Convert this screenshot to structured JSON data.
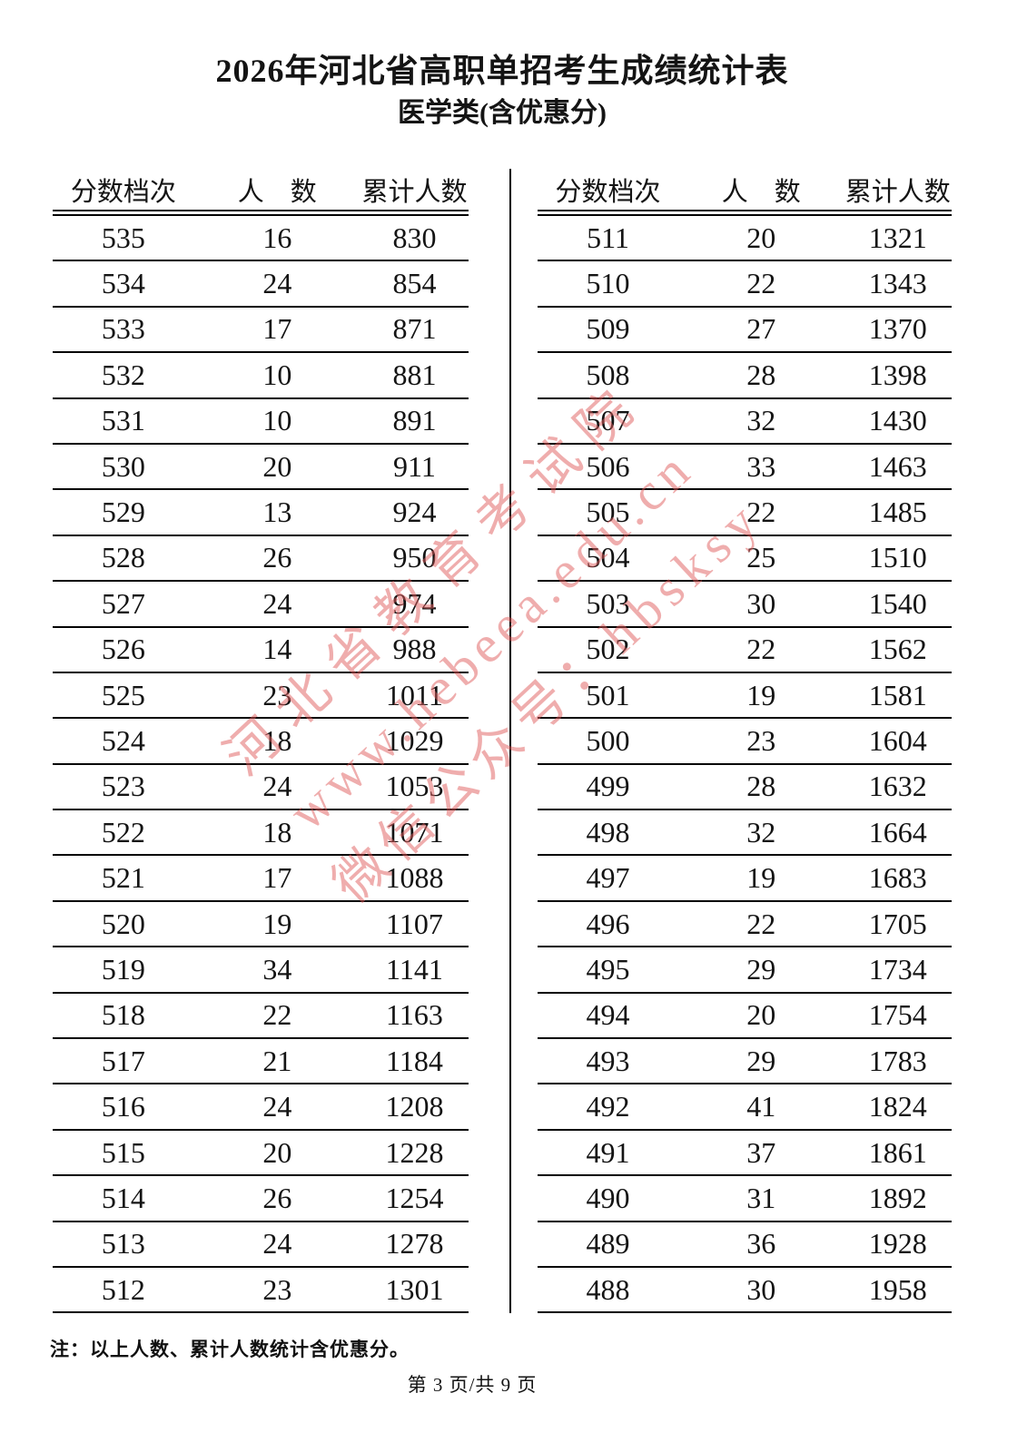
{
  "title": "2026年河北省高职单招考生成绩统计表",
  "subtitle": "医学类(含优惠分)",
  "table_header": [
    "分数档次",
    "人　数",
    "累计人数"
  ],
  "tables": {
    "left": {
      "rows": [
        [
          535,
          16,
          830
        ],
        [
          534,
          24,
          854
        ],
        [
          533,
          17,
          871
        ],
        [
          532,
          10,
          881
        ],
        [
          531,
          10,
          891
        ],
        [
          530,
          20,
          911
        ],
        [
          529,
          13,
          924
        ],
        [
          528,
          26,
          950
        ],
        [
          527,
          24,
          974
        ],
        [
          526,
          14,
          988
        ],
        [
          525,
          23,
          1011
        ],
        [
          524,
          18,
          1029
        ],
        [
          523,
          24,
          1053
        ],
        [
          522,
          18,
          1071
        ],
        [
          521,
          17,
          1088
        ],
        [
          520,
          19,
          1107
        ],
        [
          519,
          34,
          1141
        ],
        [
          518,
          22,
          1163
        ],
        [
          517,
          21,
          1184
        ],
        [
          516,
          24,
          1208
        ],
        [
          515,
          20,
          1228
        ],
        [
          514,
          26,
          1254
        ],
        [
          513,
          24,
          1278
        ],
        [
          512,
          23,
          1301
        ]
      ]
    },
    "right": {
      "rows": [
        [
          511,
          20,
          1321
        ],
        [
          510,
          22,
          1343
        ],
        [
          509,
          27,
          1370
        ],
        [
          508,
          28,
          1398
        ],
        [
          507,
          32,
          1430
        ],
        [
          506,
          33,
          1463
        ],
        [
          505,
          22,
          1485
        ],
        [
          504,
          25,
          1510
        ],
        [
          503,
          30,
          1540
        ],
        [
          502,
          22,
          1562
        ],
        [
          501,
          19,
          1581
        ],
        [
          500,
          23,
          1604
        ],
        [
          499,
          28,
          1632
        ],
        [
          498,
          32,
          1664
        ],
        [
          497,
          19,
          1683
        ],
        [
          496,
          22,
          1705
        ],
        [
          495,
          29,
          1734
        ],
        [
          494,
          20,
          1754
        ],
        [
          493,
          29,
          1783
        ],
        [
          492,
          41,
          1824
        ],
        [
          491,
          37,
          1861
        ],
        [
          490,
          31,
          1892
        ],
        [
          489,
          36,
          1928
        ],
        [
          488,
          30,
          1958
        ]
      ]
    }
  },
  "note": "注：以上人数、累计人数统计含优惠分。",
  "page_footer": "第 3 页/共 9 页",
  "watermark": {
    "color": "#e05c5c",
    "lines": [
      "河北省教育考试院",
      "www.hebeea.edu.cn",
      "微信公众号：hbsksy"
    ]
  }
}
